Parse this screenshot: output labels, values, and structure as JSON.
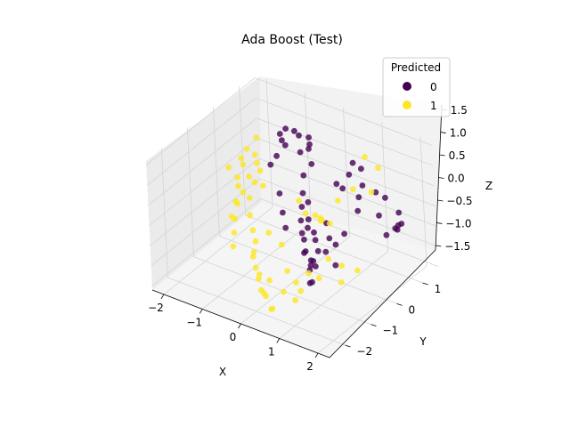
{
  "chart_data": {
    "type": "scatter",
    "projection": "3d",
    "title": "Ada Boost (Test)",
    "xlabel": "X",
    "ylabel": "Y",
    "zlabel": "Z",
    "x_ticks": [
      "−2",
      "−1",
      "0",
      "1",
      "2"
    ],
    "y_ticks": [
      "−2",
      "−1",
      "0",
      "1"
    ],
    "z_ticks": [
      "−1.5",
      "−1.0",
      "−0.5",
      "0.0",
      "0.5",
      "1.0",
      "1.5"
    ],
    "xlim": [
      -2.3,
      2.3
    ],
    "ylim": [
      -2.6,
      1.6
    ],
    "zlim": [
      -1.6,
      1.6
    ],
    "grid": true,
    "legend": {
      "title": "Predicted",
      "position": "top-right",
      "entries": [
        {
          "label": "0",
          "color": "#440154"
        },
        {
          "label": "1",
          "color": "#fde725"
        }
      ]
    },
    "series": [
      {
        "name": "0",
        "color": "#440154",
        "points": [
          [
            -1.2,
            1.1,
            0.9
          ],
          [
            -1.0,
            1.3,
            0.7
          ],
          [
            -0.9,
            1.0,
            1.0
          ],
          [
            -0.8,
            1.4,
            0.5
          ],
          [
            -1.1,
            0.8,
            0.8
          ],
          [
            -0.7,
            0.9,
            0.6
          ],
          [
            -1.3,
            1.2,
            0.4
          ],
          [
            -0.6,
            1.1,
            0.9
          ],
          [
            -0.9,
            1.5,
            0.3
          ],
          [
            -1.0,
            0.6,
            1.1
          ],
          [
            -0.5,
            0.7,
            0.2
          ],
          [
            -0.4,
            0.5,
            -0.1
          ],
          [
            -0.3,
            0.3,
            -0.3
          ],
          [
            -0.2,
            0.1,
            -0.5
          ],
          [
            -0.1,
            0.2,
            -0.7
          ],
          [
            0.0,
            -0.1,
            -0.8
          ],
          [
            0.1,
            -0.2,
            -1.0
          ],
          [
            0.2,
            -0.4,
            -0.9
          ],
          [
            0.3,
            -0.3,
            -1.1
          ],
          [
            0.4,
            -0.5,
            -1.2
          ],
          [
            0.5,
            -0.6,
            -1.0
          ],
          [
            0.6,
            -0.8,
            -1.3
          ],
          [
            0.7,
            -0.7,
            -0.9
          ],
          [
            0.8,
            -1.0,
            -1.1
          ],
          [
            0.2,
            0.0,
            -0.6
          ],
          [
            0.0,
            0.1,
            -0.4
          ],
          [
            -0.2,
            0.4,
            -0.2
          ],
          [
            0.3,
            -0.1,
            -0.7
          ],
          [
            0.5,
            -0.3,
            -0.8
          ],
          [
            0.1,
            -0.3,
            -0.5
          ],
          [
            1.0,
            -0.2,
            1.0
          ],
          [
            1.2,
            0.0,
            1.2
          ],
          [
            1.4,
            0.2,
            0.9
          ],
          [
            1.6,
            0.4,
            0.7
          ],
          [
            1.3,
            -0.4,
            1.1
          ],
          [
            1.5,
            -0.1,
            0.8
          ],
          [
            1.7,
            0.6,
            0.5
          ],
          [
            1.1,
            0.3,
            1.3
          ],
          [
            1.8,
            0.2,
            0.3
          ],
          [
            1.6,
            -0.3,
            0.6
          ],
          [
            1.9,
            0.8,
            0.1
          ],
          [
            2.0,
            0.5,
            -0.1
          ],
          [
            1.8,
            0.9,
            -0.3
          ],
          [
            1.7,
            1.0,
            -0.5
          ],
          [
            1.9,
            0.3,
            -0.2
          ],
          [
            1.5,
            -0.7,
            0.2
          ],
          [
            1.4,
            -0.9,
            0.0
          ],
          [
            1.2,
            -1.0,
            -0.2
          ],
          [
            1.0,
            -1.2,
            -0.4
          ],
          [
            1.3,
            -0.8,
            -0.6
          ],
          [
            -0.6,
            0.0,
            -0.4
          ],
          [
            -0.4,
            -0.2,
            -0.6
          ],
          [
            -0.8,
            0.2,
            -0.1
          ],
          [
            0.4,
            0.2,
            -0.4
          ],
          [
            0.6,
            0.0,
            -0.6
          ],
          [
            -1.4,
            1.0,
            0.2
          ],
          [
            -1.5,
            0.9,
            0.0
          ],
          [
            -0.7,
            1.3,
            0.1
          ],
          [
            2.1,
            0.6,
            0.0
          ],
          [
            1.1,
            0.6,
            1.0
          ]
        ]
      },
      {
        "name": "1",
        "color": "#fde725",
        "points": [
          [
            -1.9,
            0.6,
            0.4
          ],
          [
            -1.8,
            0.3,
            0.2
          ],
          [
            -1.7,
            0.1,
            0.5
          ],
          [
            -1.6,
            -0.2,
            0.0
          ],
          [
            -1.9,
            0.9,
            0.1
          ],
          [
            -1.5,
            -0.4,
            -0.3
          ],
          [
            -1.4,
            -0.6,
            -0.1
          ],
          [
            -1.3,
            -0.8,
            -0.4
          ],
          [
            -1.2,
            -1.0,
            -0.6
          ],
          [
            -1.1,
            -1.2,
            -0.8
          ],
          [
            -1.8,
            0.5,
            -0.2
          ],
          [
            -1.6,
            0.2,
            -0.5
          ],
          [
            -1.4,
            -0.1,
            -0.7
          ],
          [
            -1.2,
            -0.3,
            -0.9
          ],
          [
            -1.0,
            -0.5,
            -1.0
          ],
          [
            -0.8,
            -0.9,
            -1.1
          ],
          [
            -0.6,
            -1.1,
            -1.2
          ],
          [
            -0.4,
            -1.3,
            -1.3
          ],
          [
            -0.2,
            -1.5,
            -1.4
          ],
          [
            0.0,
            -1.7,
            -1.3
          ],
          [
            0.2,
            -1.9,
            -1.2
          ],
          [
            0.4,
            -2.0,
            -1.4
          ],
          [
            0.1,
            -1.6,
            -1.0
          ],
          [
            -0.3,
            -1.4,
            -1.1
          ],
          [
            -0.7,
            -1.0,
            -0.9
          ],
          [
            -1.7,
            0.7,
            0.7
          ],
          [
            -1.5,
            0.4,
            0.3
          ],
          [
            -1.3,
            0.0,
            0.1
          ],
          [
            -1.9,
            0.2,
            -0.1
          ],
          [
            -1.6,
            -0.5,
            -0.6
          ],
          [
            0.6,
            -1.8,
            -1.0
          ],
          [
            0.8,
            -1.6,
            -0.8
          ],
          [
            1.0,
            -1.4,
            -0.6
          ],
          [
            0.9,
            -1.8,
            -1.1
          ],
          [
            0.5,
            -2.1,
            -1.3
          ],
          [
            1.1,
            -1.0,
            0.6
          ],
          [
            1.3,
            -0.6,
            0.9
          ],
          [
            1.5,
            -0.3,
            1.1
          ],
          [
            1.7,
            0.1,
            0.9
          ],
          [
            1.2,
            -0.8,
            0.4
          ],
          [
            0.9,
            -0.7,
            0.3
          ],
          [
            0.7,
            -0.4,
            0.1
          ],
          [
            0.4,
            -0.2,
            0.0
          ],
          [
            0.0,
            0.0,
            -0.2
          ],
          [
            -0.3,
            0.2,
            -0.1
          ],
          [
            1.4,
            -1.2,
            -0.2
          ],
          [
            1.6,
            -1.0,
            -0.4
          ],
          [
            1.8,
            -0.7,
            -0.6
          ],
          [
            1.5,
            -0.9,
            -0.9
          ],
          [
            1.2,
            -1.3,
            -0.7
          ],
          [
            -1.0,
            -0.2,
            0.6
          ],
          [
            -0.8,
            -0.4,
            0.4
          ],
          [
            -1.2,
            -0.6,
            0.2
          ],
          [
            -0.5,
            -0.7,
            -0.5
          ],
          [
            -1.9,
            -0.1,
            0.3
          ],
          [
            0.3,
            -1.2,
            -0.9
          ],
          [
            0.7,
            -1.3,
            -1.2
          ],
          [
            -0.1,
            -0.8,
            -0.6
          ],
          [
            1.0,
            0.9,
            1.1
          ],
          [
            1.2,
            1.1,
            0.8
          ]
        ]
      }
    ]
  }
}
